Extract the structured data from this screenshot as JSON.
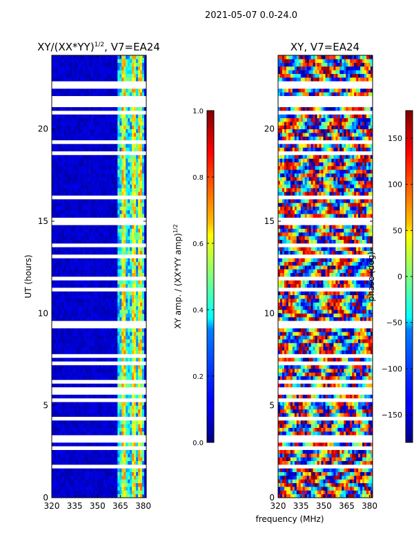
{
  "suptitle": "2021-05-07 0.0-24.0",
  "figure_xlabel": "frequency (MHz)",
  "chart_data": [
    {
      "type": "heatmap",
      "title_main": "XY/(XX*YY)",
      "title_exp": "1/2",
      "title_rest": ", V7=EA24",
      "ylabel": "UT (hours)",
      "xlim": [
        320,
        382
      ],
      "ylim": [
        0,
        24
      ],
      "xticks": [
        320,
        335,
        350,
        365,
        380
      ],
      "xtick_labels": [
        "320",
        "335",
        "350",
        "365",
        "380"
      ],
      "yticks": [
        0,
        5,
        10,
        15,
        20
      ],
      "ytick_labels": [
        "0",
        "5",
        "10",
        "15",
        "20"
      ],
      "colorbar": {
        "label_main": "XY amp. / (XX*YY amp)",
        "label_exp": "1/2",
        "range": [
          0.0,
          1.0
        ],
        "ticks": [
          0.0,
          0.2,
          0.4,
          0.6,
          0.8,
          1.0
        ],
        "tick_labels": [
          "0.0",
          "0.2",
          "0.4",
          "0.6",
          "0.8",
          "1.0"
        ],
        "colormap": "jet"
      }
    },
    {
      "type": "heatmap",
      "title_main": "XY, V7=EA24",
      "ylabel": "",
      "xlim": [
        320,
        382
      ],
      "ylim": [
        0,
        24
      ],
      "xticks": [
        320,
        335,
        350,
        365,
        380
      ],
      "xtick_labels": [
        "320",
        "335",
        "350",
        "365",
        "380"
      ],
      "yticks": [
        0,
        5,
        10,
        15,
        20
      ],
      "ytick_labels": [
        "0",
        "5",
        "10",
        "15",
        "20"
      ],
      "colorbar": {
        "label_main": "phase (deg)",
        "range": [
          -180,
          180
        ],
        "ticks": [
          -150,
          -100,
          -50,
          0,
          50,
          100,
          150
        ],
        "tick_labels": [
          "−150",
          "−100",
          "−50",
          "0",
          "50",
          "100",
          "150"
        ],
        "colormap": "jet"
      }
    }
  ],
  "colors": {
    "jet_dark_blue": "#00007f",
    "jet_blue": "#0000ff",
    "jet_cyan": "#00ffff",
    "jet_yellow": "#ffff00",
    "jet_red": "#ff0000",
    "jet_dark_red": "#7f0000"
  }
}
